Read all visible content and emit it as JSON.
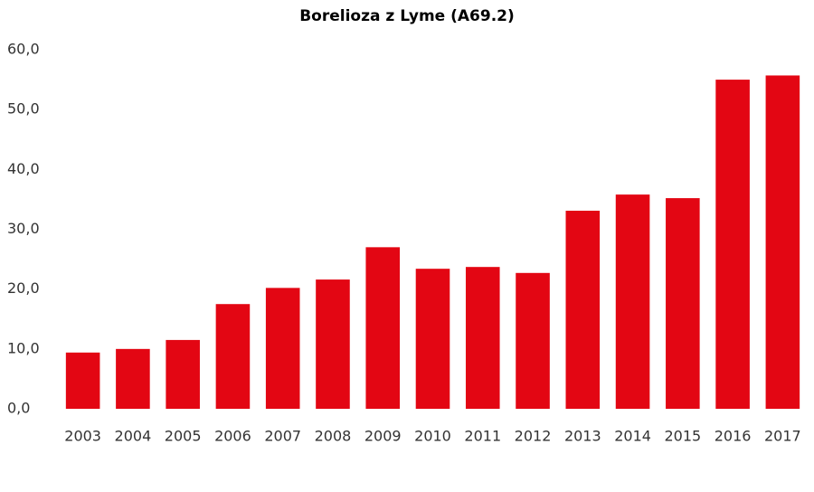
{
  "chart_data": {
    "type": "bar",
    "title": "Borelioza z Lyme (A69.2)",
    "categories": [
      "2003",
      "2004",
      "2005",
      "2006",
      "2007",
      "2008",
      "2009",
      "2010",
      "2011",
      "2012",
      "2013",
      "2014",
      "2015",
      "2016",
      "2017"
    ],
    "values": [
      9.4,
      10.0,
      11.5,
      17.5,
      20.2,
      21.6,
      27.0,
      23.4,
      23.7,
      22.7,
      33.1,
      35.8,
      35.2,
      55.0,
      55.7
    ],
    "color": "#e30613",
    "ylim": [
      0,
      60
    ],
    "yticks": [
      {
        "value": 0,
        "label": "0,0"
      },
      {
        "value": 10,
        "label": "10,0"
      },
      {
        "value": 20,
        "label": "20,0"
      },
      {
        "value": 30,
        "label": "30,0"
      },
      {
        "value": 40,
        "label": "40,0"
      },
      {
        "value": 50,
        "label": "50,0"
      },
      {
        "value": 60,
        "label": "60,0"
      }
    ],
    "grid": false
  }
}
